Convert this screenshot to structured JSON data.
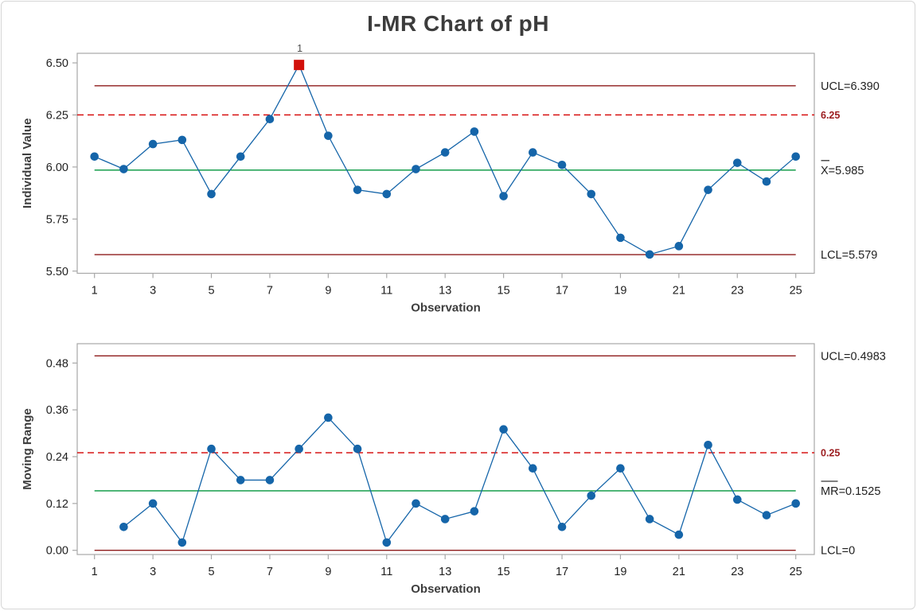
{
  "title": "I-MR Chart of pH",
  "colors": {
    "series_blue": "#1565a9",
    "center_green": "#00953b",
    "limit_maroon": "#8e1b1b",
    "reference_red": "#d40000",
    "reference_label_red": "#9b1b1e",
    "out_of_control_red": "#d2100a",
    "frame_gray": "#a8a8a8",
    "axis_text": "#3d3d3d",
    "tick_text": "#1f1f1f",
    "flag_gray": "#4a4a4a"
  },
  "chart_data": [
    {
      "type": "line",
      "panel": "individuals-chart",
      "ylabel": "Individual Value",
      "xlabel": "Observation",
      "x": [
        1,
        2,
        3,
        4,
        5,
        6,
        7,
        8,
        9,
        10,
        11,
        12,
        13,
        14,
        15,
        16,
        17,
        18,
        19,
        20,
        21,
        22,
        23,
        24,
        25
      ],
      "values": [
        6.05,
        5.99,
        6.11,
        6.13,
        5.87,
        6.05,
        6.23,
        6.49,
        6.15,
        5.89,
        5.87,
        5.99,
        6.07,
        6.17,
        5.86,
        6.07,
        6.01,
        5.87,
        5.66,
        5.58,
        5.62,
        5.89,
        6.02,
        5.93,
        6.05
      ],
      "ytick_labels": [
        "6.50",
        "6.25",
        "6.00",
        "5.75",
        "5.50"
      ],
      "ytick_values": [
        6.5,
        6.25,
        6.0,
        5.75,
        5.5
      ],
      "xtick_values": [
        1,
        3,
        5,
        7,
        9,
        11,
        13,
        15,
        17,
        19,
        21,
        23,
        25
      ],
      "ylim": [
        5.4895,
        6.546
      ],
      "grid": false,
      "legend_position": "right-margin",
      "control_lines": {
        "ucl": {
          "value": 6.39,
          "label": "UCL=6.390"
        },
        "center": {
          "value": 5.985,
          "bar_over": "X",
          "label_rest": "=5.985"
        },
        "lcl": {
          "value": 5.579,
          "label": "LCL=5.579"
        },
        "reference": {
          "value": 6.25,
          "label": "6.25",
          "style": "dashed"
        }
      },
      "out_of_control": [
        {
          "x": 8,
          "flag": "1"
        }
      ]
    },
    {
      "type": "line",
      "panel": "moving-range-chart",
      "ylabel": "Moving Range",
      "xlabel": "Observation",
      "x": [
        2,
        3,
        4,
        5,
        6,
        7,
        8,
        9,
        10,
        11,
        12,
        13,
        14,
        15,
        16,
        17,
        18,
        19,
        20,
        21,
        22,
        23,
        24,
        25
      ],
      "values": [
        0.06,
        0.12,
        0.02,
        0.26,
        0.18,
        0.18,
        0.26,
        0.34,
        0.26,
        0.02,
        0.12,
        0.08,
        0.1,
        0.31,
        0.21,
        0.06,
        0.14,
        0.21,
        0.08,
        0.04,
        0.27,
        0.13,
        0.09,
        0.12
      ],
      "ytick_labels": [
        "0.48",
        "0.36",
        "0.24",
        "0.12",
        "0.00"
      ],
      "ytick_values": [
        0.48,
        0.36,
        0.24,
        0.12,
        0.0
      ],
      "xtick_values": [
        1,
        3,
        5,
        7,
        9,
        11,
        13,
        15,
        17,
        19,
        21,
        23,
        25
      ],
      "ylim": [
        -0.0108,
        0.5296
      ],
      "grid": false,
      "legend_position": "right-margin",
      "control_lines": {
        "ucl": {
          "value": 0.4983,
          "label": "UCL=0.4983"
        },
        "center": {
          "value": 0.1525,
          "bar_over": "MR",
          "label_rest": "=0.1525"
        },
        "lcl": {
          "value": 0,
          "label": "LCL=0"
        },
        "reference": {
          "value": 0.25,
          "label": "0.25",
          "style": "dashed"
        }
      },
      "out_of_control": []
    }
  ]
}
